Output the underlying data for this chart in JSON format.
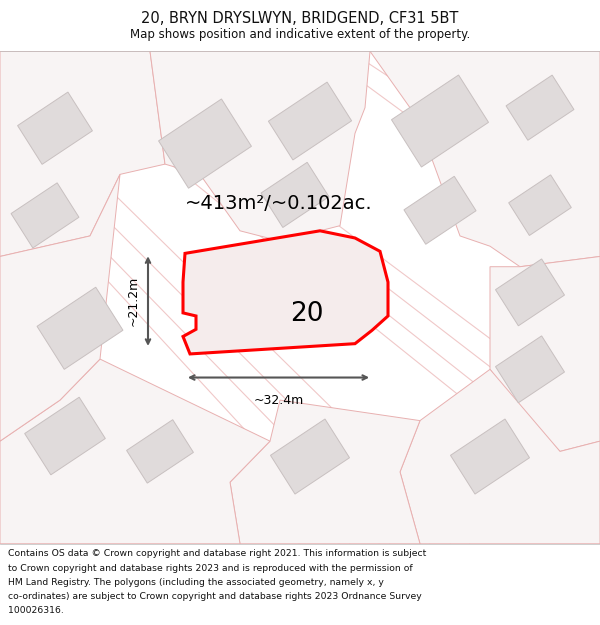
{
  "title": "20, BRYN DRYSLWYN, BRIDGEND, CF31 5BT",
  "subtitle": "Map shows position and indicative extent of the property.",
  "area_text": "~413m²/~0.102ac.",
  "label_20": "20",
  "dim_width": "~32.4m",
  "dim_height": "~21.2m",
  "map_bg": "#f9f6f6",
  "footer_lines": [
    "Contains OS data © Crown copyright and database right 2021. This information is subject",
    "to Crown copyright and database rights 2023 and is reproduced with the permission of",
    "HM Land Registry. The polygons (including the associated geometry, namely x, y",
    "co-ordinates) are subject to Crown copyright and database rights 2023 Ordnance Survey",
    "100026316."
  ],
  "road_color": "#f0c8c8",
  "road_lw": 0.8,
  "building_face": "#e0dbdb",
  "building_edge": "#c8c0c0",
  "parcel_edge": "#e8b0b0",
  "parcel_face": "#f8f4f4",
  "property_fill": "#f5ecec",
  "property_edge": "#ff0000",
  "property_edge_lw": 2.2,
  "arrow_color": "#555555",
  "text_color": "#111111",
  "title_fontsize": 10.5,
  "subtitle_fontsize": 8.5,
  "area_fontsize": 14,
  "label_fontsize": 19,
  "dim_fontsize": 9,
  "footer_fontsize": 6.7
}
